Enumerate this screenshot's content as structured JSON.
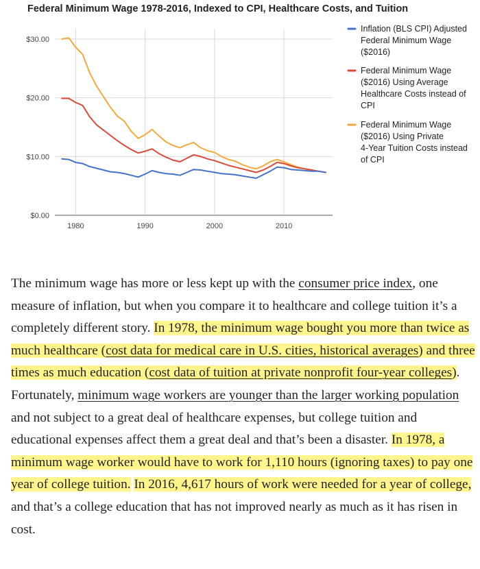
{
  "chart_data": {
    "type": "line",
    "title": "Federal Minimum Wage 1978-2016, Indexed to CPI, Healthcare Costs, and Tuition",
    "xlabel": "",
    "ylabel": "",
    "xlim": [
      1977,
      2017
    ],
    "ylim": [
      0,
      30
    ],
    "grid": true,
    "x_ticks": [
      "1980",
      "1990",
      "2000",
      "2010"
    ],
    "y_ticks": [
      "$0.00",
      "$10.00",
      "$20.00",
      "$30.00"
    ],
    "legend_position": "right",
    "x": [
      1978,
      1979,
      1980,
      1981,
      1982,
      1983,
      1984,
      1985,
      1986,
      1987,
      1988,
      1989,
      1990,
      1991,
      1992,
      1993,
      1994,
      1995,
      1996,
      1997,
      1998,
      1999,
      2000,
      2001,
      2002,
      2003,
      2004,
      2005,
      2006,
      2007,
      2008,
      2009,
      2010,
      2011,
      2012,
      2013,
      2014,
      2015,
      2016
    ],
    "series": [
      {
        "name": "Inflation (BLS CPI) Adjusted Federal Minimum Wage ($2016)",
        "color": "#4472ca",
        "values": [
          9.6,
          9.5,
          9.0,
          8.8,
          8.3,
          8.0,
          7.7,
          7.4,
          7.3,
          7.1,
          6.8,
          6.5,
          7.0,
          7.6,
          7.3,
          7.1,
          7.0,
          6.8,
          7.3,
          7.8,
          7.7,
          7.5,
          7.3,
          7.1,
          7.0,
          6.9,
          6.7,
          6.5,
          6.3,
          6.9,
          7.5,
          8.2,
          8.1,
          7.8,
          7.7,
          7.6,
          7.5,
          7.5,
          7.3
        ]
      },
      {
        "name": "Federal Minimum Wage ($2016) Using Average Healthcare Costs instead of CPI",
        "color": "#db4a35",
        "values": [
          19.9,
          19.9,
          19.2,
          18.7,
          16.8,
          15.4,
          14.5,
          13.6,
          12.7,
          11.9,
          11.2,
          10.6,
          10.9,
          11.3,
          10.5,
          9.9,
          9.4,
          9.1,
          9.7,
          10.3,
          10.0,
          9.6,
          9.3,
          8.9,
          8.5,
          8.2,
          7.9,
          7.6,
          7.3,
          7.7,
          8.3,
          9.0,
          8.8,
          8.4,
          8.1,
          7.9,
          7.7,
          7.5,
          7.3
        ]
      },
      {
        "name": "Federal Minimum Wage ($2016) Using Private 4-Year Tuition Costs instead of CPI",
        "color": "#f6a93b",
        "values": [
          30.0,
          30.2,
          28.6,
          27.4,
          24.3,
          22.0,
          20.2,
          18.4,
          16.9,
          16.0,
          14.3,
          13.1,
          13.7,
          14.6,
          13.5,
          12.5,
          11.9,
          11.5,
          12.0,
          12.4,
          11.5,
          11.0,
          10.7,
          10.0,
          9.5,
          9.2,
          8.6,
          8.2,
          7.9,
          8.4,
          9.1,
          9.5,
          9.1,
          8.6,
          8.2,
          7.9,
          7.7,
          7.5,
          7.3
        ]
      }
    ]
  },
  "article": {
    "p1": "The minimum wage has more or less kept up with the ",
    "link1": "consumer price index",
    "p2": ", one measure of inflation, but when you compare it to healthcare and college tuition it’s a completely different story. ",
    "h1a": "In 1978, the minimum wage bought you more than twice as much healthcare (",
    "link2": "cost data for medical care in U.S. cities, historical averages",
    "h1b": ") and three times as much education (",
    "link3": "cost data of tuition at private nonprofit four-year colleges",
    "h1c": ")",
    "p3": ". Fortunately, ",
    "link4": "minimum wage workers are younger than the larger working population",
    "p4": " and not subject to a great deal of healthcare expenses, but college tuition and educational expenses affect them a great deal and that’s been a disaster. ",
    "h2": "In 1978, a minimum wage worker would have to work for 1,110 hours (ignoring taxes) to pay one year of college tuition.",
    "p5": " ",
    "h3": "In 2016, 4,617 hours of work were needed for a year of college,",
    "p6": " and that’s a college education that has not improved nearly as much as it has risen in cost."
  }
}
